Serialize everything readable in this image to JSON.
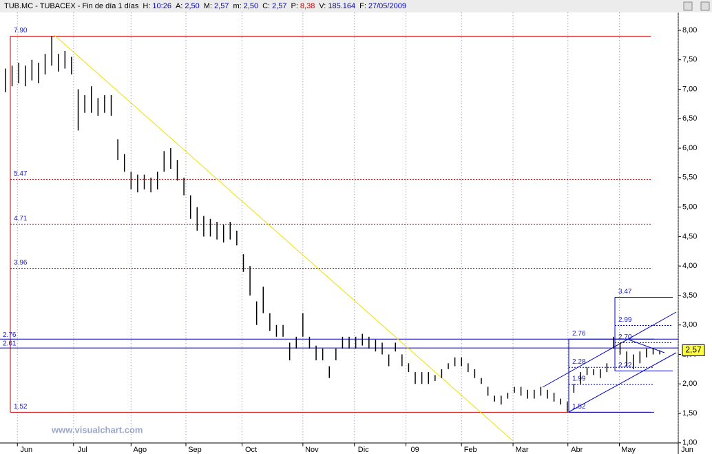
{
  "header": {
    "title": "TUB.MC - TUBACEX - Fin de día 1 días",
    "fields": [
      {
        "key": "H:",
        "value": "10:26"
      },
      {
        "key": "A:",
        "value": "2,50"
      },
      {
        "key": "M:",
        "value": "2,57"
      },
      {
        "key": "m:",
        "value": "2,50"
      },
      {
        "key": "C:",
        "value": "2,57"
      },
      {
        "key": "P:",
        "value": "8,38"
      },
      {
        "key": "V:",
        "value": "185.164"
      },
      {
        "key": "F:",
        "value": "27/05/2009"
      }
    ]
  },
  "chart_data": {
    "type": "ohlc",
    "color": "#000000",
    "high": [
      7.35,
      7.4,
      7.45,
      7.4,
      7.5,
      7.45,
      7.6,
      7.9,
      7.6,
      7.65,
      7.55,
      7.0,
      6.9,
      7.05,
      6.85,
      6.9,
      6.9,
      6.15,
      5.9,
      5.6,
      5.55,
      5.55,
      5.5,
      5.6,
      5.95,
      6.0,
      5.8,
      5.5,
      5.2,
      5.0,
      4.85,
      4.8,
      4.75,
      4.7,
      4.75,
      4.6,
      4.2,
      4.0,
      3.4,
      3.65,
      3.2,
      3.0,
      3.0,
      2.7,
      2.8,
      3.2,
      2.8,
      2.65,
      2.6,
      2.3,
      2.6,
      2.8,
      2.8,
      2.8,
      2.85,
      2.8,
      2.75,
      2.7,
      2.5,
      2.7,
      2.5,
      2.35,
      2.2,
      2.2,
      2.2,
      2.15,
      2.25,
      2.35,
      2.45,
      2.45,
      2.35,
      2.25,
      2.1,
      1.95,
      1.8,
      1.8,
      1.85,
      1.95,
      1.95,
      1.9,
      1.9,
      1.95,
      1.9,
      1.85,
      1.75,
      1.7,
      2.0,
      2.2,
      2.28,
      2.25,
      2.25,
      2.35,
      2.8,
      2.7,
      2.55,
      2.5,
      2.55,
      2.6,
      2.6,
      2.57
    ],
    "low": [
      6.95,
      7.05,
      7.1,
      7.05,
      7.15,
      7.1,
      7.25,
      7.4,
      7.3,
      7.35,
      7.25,
      6.3,
      6.6,
      6.6,
      6.55,
      6.6,
      6.55,
      5.8,
      5.6,
      5.3,
      5.25,
      5.3,
      5.25,
      5.3,
      5.6,
      5.65,
      5.45,
      5.2,
      4.8,
      4.6,
      4.5,
      4.5,
      4.45,
      4.4,
      4.45,
      4.35,
      3.9,
      3.5,
      3.0,
      3.2,
      2.9,
      2.8,
      2.8,
      2.4,
      2.6,
      2.8,
      2.6,
      2.4,
      2.4,
      2.1,
      2.4,
      2.6,
      2.6,
      2.6,
      2.65,
      2.6,
      2.55,
      2.5,
      2.3,
      2.55,
      2.3,
      2.2,
      2.0,
      2.0,
      2.0,
      2.05,
      2.1,
      2.25,
      2.3,
      2.3,
      2.2,
      2.1,
      2.0,
      1.8,
      1.7,
      1.65,
      1.75,
      1.85,
      1.8,
      1.75,
      1.75,
      1.8,
      1.75,
      1.7,
      1.65,
      1.52,
      1.85,
      2.0,
      2.15,
      2.15,
      2.1,
      2.2,
      2.6,
      2.5,
      2.3,
      2.25,
      2.35,
      2.45,
      2.5,
      2.5
    ],
    "xlim": [
      -0.83,
      101.8
    ],
    "ylim": [
      1.0,
      8.3
    ],
    "xticks": [
      {
        "value": 1.8,
        "label": "Jun"
      },
      {
        "value": 10.3,
        "label": "Jul"
      },
      {
        "value": 19,
        "label": "Ago"
      },
      {
        "value": 27.3,
        "label": "Sep"
      },
      {
        "value": 35.8,
        "label": "Oct"
      },
      {
        "value": 45,
        "label": "Nov"
      },
      {
        "value": 52.8,
        "label": "Dic"
      },
      {
        "value": 60.6,
        "label": "09"
      },
      {
        "value": 69,
        "label": "Feb"
      },
      {
        "value": 76.8,
        "label": "Mar"
      },
      {
        "value": 85.1,
        "label": "Abr"
      },
      {
        "value": 92.9,
        "label": "May"
      },
      {
        "value": 101.8,
        "label": "Jun"
      }
    ],
    "yticks": [
      {
        "value": 8,
        "label": "8,00"
      },
      {
        "value": 7.5,
        "label": "7,50"
      },
      {
        "value": 7,
        "label": "7,00"
      },
      {
        "value": 6.5,
        "label": "6,50"
      },
      {
        "value": 6,
        "label": "6,00"
      },
      {
        "value": 5.5,
        "label": "5,50"
      },
      {
        "value": 5,
        "label": "5,00"
      },
      {
        "value": 4.5,
        "label": "4,50"
      },
      {
        "value": 4,
        "label": "4,00"
      },
      {
        "value": 3.5,
        "label": "3,50"
      },
      {
        "value": 3,
        "label": "3,00"
      },
      {
        "value": 2.5,
        "label": "2,50"
      },
      {
        "value": 2,
        "label": "2,00"
      },
      {
        "value": 1.5,
        "label": "1,50"
      },
      {
        "value": 1,
        "label": "1,00"
      }
    ],
    "red_levels": [
      {
        "value": 7.9,
        "label": "7.90"
      },
      {
        "value": 5.47,
        "label": "5.47"
      },
      {
        "value": 4.71,
        "label": "4.71"
      },
      {
        "value": 3.96,
        "label": "3.96"
      },
      {
        "value": 1.52,
        "label": "1.52"
      }
    ],
    "blue_levels": [
      {
        "value": 2.76,
        "label": "2.76"
      },
      {
        "value": 2.61,
        "label": "2.61"
      }
    ],
    "fib_a": [
      {
        "value": 2.76,
        "label": "2.76"
      },
      {
        "value": 2.28,
        "label": "2.28"
      },
      {
        "value": 1.99,
        "label": "1.99"
      },
      {
        "value": 1.52,
        "label": "1.52"
      }
    ],
    "fib_b": [
      {
        "value": 3.47,
        "label": "3.47"
      },
      {
        "value": 2.99,
        "label": "2.99"
      },
      {
        "value": 2.7,
        "label": "2.70"
      },
      {
        "value": 2.22,
        "label": "2.22"
      }
    ],
    "last_price": {
      "value": 2.57,
      "label": "2,57"
    },
    "watermark": "www.visualchart.com"
  }
}
